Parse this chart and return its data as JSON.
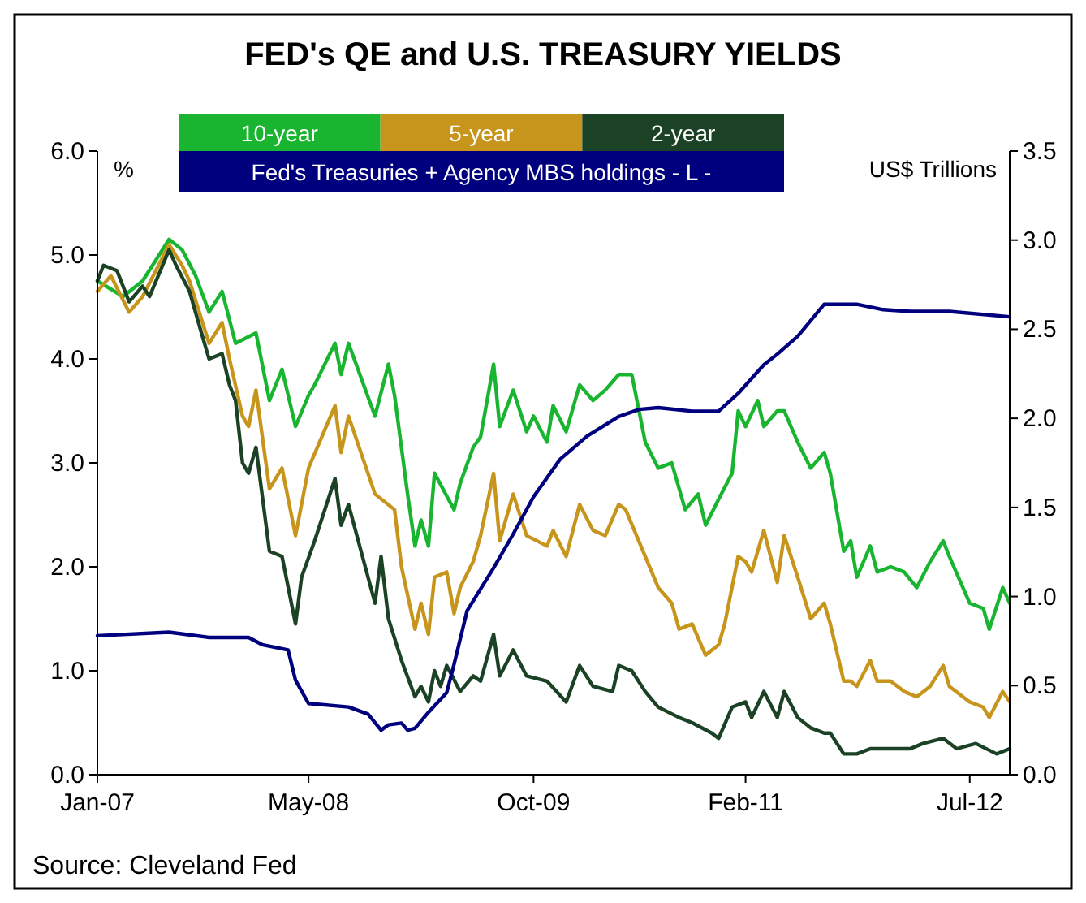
{
  "chart_data": {
    "type": "line",
    "title": "FED's QE and U.S. TREASURY YIELDS",
    "ylabel": "%",
    "y2label": "US$ Trillions",
    "legend": "top",
    "annotations": [
      "Source: Cleveland Fed"
    ],
    "xlim": [
      "2007-01-01",
      "2012-10-01"
    ],
    "xticks": [
      {
        "value": "2007-01-01",
        "label": "Jan-07"
      },
      {
        "value": "2008-05-01",
        "label": "May-08"
      },
      {
        "value": "2009-10-01",
        "label": "Oct-09"
      },
      {
        "value": "2011-02-01",
        "label": "Feb-11"
      },
      {
        "value": "2012-07-01",
        "label": "Jul-12"
      }
    ],
    "ylim": [
      0,
      6
    ],
    "yticks": [
      {
        "value": 0,
        "label": "0.0"
      },
      {
        "value": 1,
        "label": "1.0"
      },
      {
        "value": 2,
        "label": "2.0"
      },
      {
        "value": 3,
        "label": "3.0"
      },
      {
        "value": 4,
        "label": "4.0"
      },
      {
        "value": 5,
        "label": "5.0"
      },
      {
        "value": 6,
        "label": "6.0"
      }
    ],
    "y2lim": [
      0,
      3.5
    ],
    "y2ticks": [
      {
        "value": 0,
        "label": "0.0"
      },
      {
        "value": 0.5,
        "label": "0.5"
      },
      {
        "value": 1,
        "label": "1.0"
      },
      {
        "value": 1.5,
        "label": "1.5"
      },
      {
        "value": 2,
        "label": "2.0"
      },
      {
        "value": 2.5,
        "label": "2.5"
      },
      {
        "value": 3,
        "label": "3.0"
      },
      {
        "value": 3.5,
        "label": "3.5"
      }
    ],
    "series": [
      {
        "name": "10-year",
        "color": "#19b531",
        "x": [
          "2007-01-01",
          "2007-03-01",
          "2007-04-15",
          "2007-06-15",
          "2007-07-15",
          "2007-08-15",
          "2007-09-15",
          "2007-10-15",
          "2007-11-15",
          "2008-01-01",
          "2008-02-01",
          "2008-03-01",
          "2008-04-01",
          "2008-05-01",
          "2008-05-15",
          "2008-07-01",
          "2008-07-15",
          "2008-08-01",
          "2008-10-01",
          "2008-11-01",
          "2008-11-15",
          "2008-12-15",
          "2009-01-01",
          "2009-01-15",
          "2009-02-01",
          "2009-02-15",
          "2009-04-01",
          "2009-04-15",
          "2009-05-15",
          "2009-06-01",
          "2009-07-01",
          "2009-07-15",
          "2009-08-15",
          "2009-09-15",
          "2009-10-01",
          "2009-11-01",
          "2009-11-15",
          "2009-12-15",
          "2010-01-15",
          "2010-02-15",
          "2010-03-15",
          "2010-04-15",
          "2010-05-15",
          "2010-06-15",
          "2010-07-15",
          "2010-08-15",
          "2010-09-15",
          "2010-10-15",
          "2010-11-01",
          "2010-12-01",
          "2011-01-01",
          "2011-01-15",
          "2011-02-01",
          "2011-03-01",
          "2011-03-15",
          "2011-04-15",
          "2011-05-01",
          "2011-06-01",
          "2011-07-01",
          "2011-08-01",
          "2011-08-15",
          "2011-09-15",
          "2011-10-01",
          "2011-10-15",
          "2011-11-15",
          "2011-12-01",
          "2012-01-01",
          "2012-02-01",
          "2012-03-01",
          "2012-04-01",
          "2012-05-01",
          "2012-05-15",
          "2012-07-01",
          "2012-08-01",
          "2012-08-15",
          "2012-09-15",
          "2012-10-01"
        ],
        "values": [
          4.75,
          4.6,
          4.75,
          5.15,
          5.05,
          4.8,
          4.45,
          4.65,
          4.15,
          4.25,
          3.6,
          3.9,
          3.35,
          3.65,
          3.75,
          4.15,
          3.85,
          4.15,
          3.45,
          3.95,
          3.65,
          2.7,
          2.2,
          2.45,
          2.2,
          2.9,
          2.55,
          2.8,
          3.15,
          3.25,
          3.95,
          3.35,
          3.7,
          3.3,
          3.45,
          3.2,
          3.55,
          3.3,
          3.75,
          3.6,
          3.7,
          3.85,
          3.85,
          3.2,
          2.95,
          3.0,
          2.55,
          2.7,
          2.4,
          2.65,
          2.9,
          3.5,
          3.35,
          3.6,
          3.35,
          3.5,
          3.5,
          3.2,
          2.95,
          3.1,
          2.9,
          2.15,
          2.25,
          1.9,
          2.2,
          1.95,
          2.0,
          1.95,
          1.8,
          2.05,
          2.25,
          2.1,
          1.65,
          1.6,
          1.4,
          1.8,
          1.65
        ]
      },
      {
        "name": "5-year",
        "color": "#c8951c",
        "x": [
          "2007-01-01",
          "2007-02-01",
          "2007-03-15",
          "2007-04-15",
          "2007-06-15",
          "2007-07-15",
          "2007-08-01",
          "2007-09-15",
          "2007-10-15",
          "2007-11-01",
          "2007-12-01",
          "2007-12-15",
          "2008-01-01",
          "2008-02-01",
          "2008-03-01",
          "2008-04-01",
          "2008-05-01",
          "2008-07-01",
          "2008-07-15",
          "2008-08-01",
          "2008-10-01",
          "2008-11-15",
          "2008-12-01",
          "2009-01-01",
          "2009-01-15",
          "2009-02-01",
          "2009-02-15",
          "2009-03-15",
          "2009-04-01",
          "2009-04-15",
          "2009-05-15",
          "2009-06-01",
          "2009-07-01",
          "2009-07-15",
          "2009-08-15",
          "2009-09-15",
          "2009-11-01",
          "2009-11-15",
          "2009-12-15",
          "2010-01-15",
          "2010-02-15",
          "2010-03-15",
          "2010-04-15",
          "2010-05-01",
          "2010-06-15",
          "2010-07-15",
          "2010-08-15",
          "2010-09-01",
          "2010-10-01",
          "2010-11-01",
          "2010-12-01",
          "2010-12-15",
          "2011-01-15",
          "2011-02-01",
          "2011-02-15",
          "2011-03-15",
          "2011-04-15",
          "2011-05-01",
          "2011-06-01",
          "2011-07-01",
          "2011-08-01",
          "2011-08-15",
          "2011-09-15",
          "2011-10-01",
          "2011-10-15",
          "2011-11-15",
          "2011-12-01",
          "2012-01-01",
          "2012-02-01",
          "2012-03-01",
          "2012-04-01",
          "2012-05-01",
          "2012-05-15",
          "2012-07-01",
          "2012-08-01",
          "2012-08-15",
          "2012-09-15",
          "2012-10-01"
        ],
        "values": [
          4.65,
          4.8,
          4.45,
          4.6,
          5.1,
          4.9,
          4.75,
          4.15,
          4.35,
          4.0,
          3.45,
          3.35,
          3.7,
          2.75,
          2.95,
          2.3,
          2.95,
          3.55,
          3.1,
          3.45,
          2.7,
          2.55,
          2.0,
          1.4,
          1.65,
          1.35,
          1.9,
          1.95,
          1.55,
          1.8,
          2.05,
          2.3,
          2.9,
          2.25,
          2.7,
          2.3,
          2.2,
          2.35,
          2.1,
          2.6,
          2.35,
          2.3,
          2.6,
          2.55,
          2.1,
          1.8,
          1.65,
          1.4,
          1.45,
          1.15,
          1.25,
          1.45,
          2.1,
          2.05,
          1.95,
          2.35,
          1.85,
          2.3,
          1.9,
          1.5,
          1.65,
          1.45,
          0.9,
          0.9,
          0.85,
          1.1,
          0.9,
          0.9,
          0.8,
          0.75,
          0.85,
          1.05,
          0.85,
          0.7,
          0.65,
          0.55,
          0.8,
          0.7
        ]
      },
      {
        "name": "2-year",
        "color": "#1c4226",
        "x": [
          "2007-01-01",
          "2007-01-15",
          "2007-02-15",
          "2007-03-15",
          "2007-04-15",
          "2007-05-01",
          "2007-06-15",
          "2007-07-01",
          "2007-08-01",
          "2007-09-01",
          "2007-09-15",
          "2007-10-15",
          "2007-11-01",
          "2007-11-15",
          "2007-12-01",
          "2007-12-15",
          "2008-01-01",
          "2008-02-01",
          "2008-03-01",
          "2008-04-01",
          "2008-04-15",
          "2008-05-15",
          "2008-07-01",
          "2008-07-15",
          "2008-08-01",
          "2008-10-01",
          "2008-10-15",
          "2008-11-01",
          "2008-12-01",
          "2009-01-01",
          "2009-01-15",
          "2009-02-01",
          "2009-02-15",
          "2009-03-01",
          "2009-03-15",
          "2009-04-15",
          "2009-05-15",
          "2009-06-01",
          "2009-07-01",
          "2009-07-15",
          "2009-08-15",
          "2009-09-15",
          "2009-11-01",
          "2009-12-15",
          "2010-01-15",
          "2010-02-15",
          "2010-04-01",
          "2010-04-15",
          "2010-05-15",
          "2010-06-15",
          "2010-07-15",
          "2010-09-01",
          "2010-10-01",
          "2010-11-15",
          "2010-12-01",
          "2011-01-01",
          "2011-02-01",
          "2011-02-15",
          "2011-03-15",
          "2011-04-15",
          "2011-05-01",
          "2011-06-01",
          "2011-07-01",
          "2011-08-01",
          "2011-08-15",
          "2011-09-15",
          "2011-10-15",
          "2011-11-15",
          "2012-01-01",
          "2012-02-15",
          "2012-03-15",
          "2012-05-01",
          "2012-06-01",
          "2012-07-15",
          "2012-09-01",
          "2012-10-01"
        ],
        "values": [
          4.75,
          4.9,
          4.85,
          4.55,
          4.7,
          4.6,
          5.05,
          4.9,
          4.65,
          4.2,
          4.0,
          4.05,
          3.75,
          3.6,
          3.0,
          2.9,
          3.15,
          2.15,
          2.1,
          1.45,
          1.9,
          2.25,
          2.85,
          2.4,
          2.6,
          1.65,
          2.1,
          1.5,
          1.1,
          0.75,
          0.85,
          0.7,
          1.0,
          0.85,
          1.05,
          0.8,
          0.95,
          0.9,
          1.35,
          0.95,
          1.2,
          0.95,
          0.9,
          0.7,
          1.05,
          0.85,
          0.8,
          1.05,
          1.0,
          0.8,
          0.65,
          0.55,
          0.5,
          0.4,
          0.35,
          0.65,
          0.7,
          0.55,
          0.8,
          0.55,
          0.8,
          0.55,
          0.45,
          0.4,
          0.4,
          0.2,
          0.2,
          0.25,
          0.25,
          0.25,
          0.3,
          0.35,
          0.25,
          0.3,
          0.2,
          0.25
        ]
      },
      {
        "name": "Fed's Treasuries + Agency MBS holdings - L -",
        "color": "#00007f",
        "axis": "y2",
        "x": [
          "2007-01-01",
          "2007-06-15",
          "2007-09-15",
          "2007-12-15",
          "2008-01-15",
          "2008-03-15",
          "2008-04-01",
          "2008-05-01",
          "2008-08-01",
          "2008-09-15",
          "2008-10-15",
          "2008-11-01",
          "2008-12-01",
          "2008-12-15",
          "2009-01-01",
          "2009-02-01",
          "2009-03-15",
          "2009-04-01",
          "2009-05-01",
          "2009-07-01",
          "2009-08-15",
          "2009-10-01",
          "2009-12-01",
          "2010-02-01",
          "2010-04-15",
          "2010-06-01",
          "2010-07-15",
          "2010-10-01",
          "2010-12-01",
          "2011-01-15",
          "2011-03-15",
          "2011-04-15",
          "2011-06-01",
          "2011-08-01",
          "2011-10-15",
          "2011-12-15",
          "2012-02-15",
          "2012-05-15",
          "2012-10-01"
        ],
        "values": [
          0.78,
          0.8,
          0.77,
          0.77,
          0.73,
          0.7,
          0.53,
          0.4,
          0.38,
          0.34,
          0.25,
          0.28,
          0.29,
          0.25,
          0.26,
          0.35,
          0.46,
          0.62,
          0.92,
          1.16,
          1.35,
          1.56,
          1.77,
          1.9,
          2.01,
          2.05,
          2.06,
          2.04,
          2.04,
          2.14,
          2.3,
          2.36,
          2.46,
          2.64,
          2.64,
          2.61,
          2.6,
          2.6,
          2.57
        ]
      }
    ]
  }
}
